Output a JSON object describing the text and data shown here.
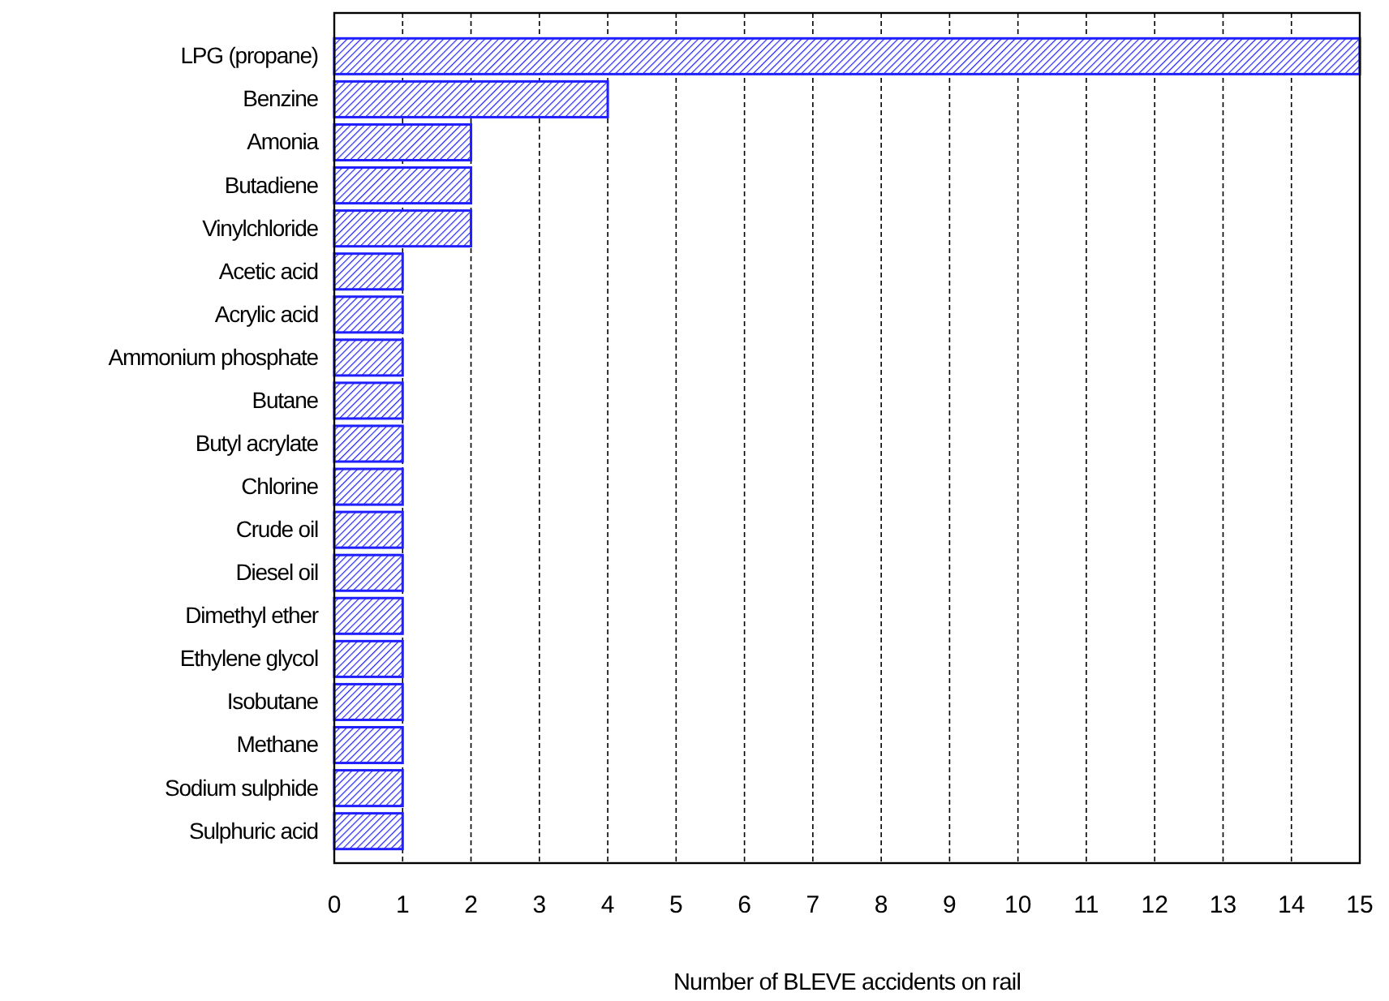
{
  "chart_data": {
    "type": "bar",
    "orientation": "horizontal",
    "xlabel": "Number of BLEVE accidents on rail",
    "categories": [
      "LPG (propane)",
      "Benzine",
      "Amonia",
      "Butadiene",
      "Vinylchloride",
      "Acetic acid",
      "Acrylic acid",
      "Ammonium phosphate",
      "Butane",
      "Butyl acrylate",
      "Chlorine",
      "Crude oil",
      "Diesel oil",
      "Dimethyl ether",
      "Ethylene glycol",
      "Isobutane",
      "Methane",
      "Sodium sulphide",
      "Sulphuric acid"
    ],
    "values": [
      15,
      4,
      2,
      2,
      2,
      1,
      1,
      1,
      1,
      1,
      1,
      1,
      1,
      1,
      1,
      1,
      1,
      1,
      1
    ],
    "color": "#1f1fff",
    "xlim": [
      0,
      15
    ],
    "xticks": [
      0,
      1,
      2,
      3,
      4,
      5,
      6,
      7,
      8,
      9,
      10,
      11,
      12,
      13,
      14,
      15
    ],
    "grid": "x"
  }
}
